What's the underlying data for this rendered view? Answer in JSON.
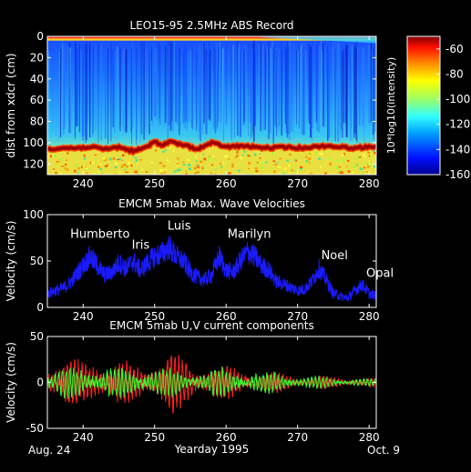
{
  "chart_data": [
    {
      "type": "heatmap",
      "title": "LEO15-95 2.5MHz ABS Record",
      "ylabel": "dist from xdcr (cm)",
      "xlim": [
        235,
        281
      ],
      "ylim": [
        130,
        0
      ],
      "yticks": [
        0,
        20,
        40,
        60,
        80,
        100,
        120
      ],
      "xticks": [
        240,
        250,
        260,
        270,
        280
      ],
      "colorbar": {
        "label": "10*log10(intensity)",
        "range": [
          -160,
          -50
        ],
        "ticks": [
          -60,
          -80,
          -100,
          -120,
          -140,
          -160
        ]
      },
      "bed_profile": {
        "x": [
          235,
          237,
          239,
          241,
          243,
          245,
          247,
          249,
          250,
          251,
          252,
          254,
          256,
          258,
          260,
          262,
          264,
          266,
          268,
          270,
          272,
          274,
          276,
          278,
          280,
          281
        ],
        "y": [
          106,
          105,
          105,
          104,
          106,
          104,
          108,
          104,
          98,
          103,
          99,
          102,
          106,
          100,
          104,
          103,
          104,
          105,
          104,
          105,
          104,
          103,
          104,
          105,
          104,
          103
        ]
      }
    },
    {
      "type": "line",
      "title": "EMCM 5mab Max. Wave Velocities",
      "ylabel": "Velocity (cm/s)",
      "xlim": [
        235,
        281
      ],
      "ylim": [
        0,
        100
      ],
      "yticks": [
        0,
        50,
        100
      ],
      "xticks": [
        240,
        250,
        260,
        270,
        280
      ],
      "series": [
        {
          "color": "#1a1aff",
          "x": [
            235,
            236,
            237,
            238,
            239,
            240,
            241,
            242,
            243,
            244,
            245,
            246,
            247,
            248,
            249,
            250,
            251,
            252,
            253,
            254,
            255,
            256,
            257,
            258,
            259,
            260,
            261,
            262,
            263,
            264,
            265,
            266,
            267,
            268,
            269,
            270,
            271,
            272,
            273,
            274,
            275,
            276,
            277,
            278,
            279,
            280,
            281
          ],
          "values": [
            15,
            18,
            20,
            25,
            35,
            45,
            55,
            45,
            35,
            38,
            48,
            42,
            50,
            40,
            48,
            55,
            58,
            65,
            55,
            50,
            38,
            32,
            30,
            35,
            55,
            40,
            38,
            50,
            60,
            55,
            45,
            40,
            28,
            25,
            22,
            18,
            20,
            28,
            42,
            30,
            15,
            12,
            10,
            18,
            25,
            15,
            12
          ]
        }
      ],
      "annotations": [
        {
          "text": "Humberto",
          "x": 238.2,
          "y": 75
        },
        {
          "text": "Iris",
          "x": 246.8,
          "y": 63
        },
        {
          "text": "Luis",
          "x": 251.8,
          "y": 84
        },
        {
          "text": "Marilyn",
          "x": 260.2,
          "y": 75
        },
        {
          "text": "Noel",
          "x": 273.3,
          "y": 52
        },
        {
          "text": "Opal",
          "x": 279.6,
          "y": 33
        }
      ]
    },
    {
      "type": "line",
      "title": "EMCM 5mab U,V current components",
      "ylabel": "Velocity (cm/s)",
      "xlabel": "Yearday 1995",
      "xlim": [
        235,
        281
      ],
      "ylim": [
        -50,
        50
      ],
      "yticks": [
        -50,
        0,
        50
      ],
      "xticks": [
        240,
        250,
        260,
        270,
        280
      ],
      "series": [
        {
          "color": "#ff2020",
          "amp": [
            22,
            24,
            20,
            26,
            22,
            18,
            20,
            30,
            22,
            18,
            16,
            14,
            12,
            10,
            8,
            6,
            6,
            5,
            5,
            4
          ]
        },
        {
          "color": "#30ff30",
          "amp": [
            12,
            14,
            15,
            16,
            14,
            15,
            16,
            14,
            12,
            12,
            14,
            13,
            12,
            10,
            8,
            6,
            6,
            4,
            4,
            3
          ]
        }
      ],
      "xlabel_left": "Aug. 24",
      "xlabel_right": "Oct. 9"
    }
  ]
}
